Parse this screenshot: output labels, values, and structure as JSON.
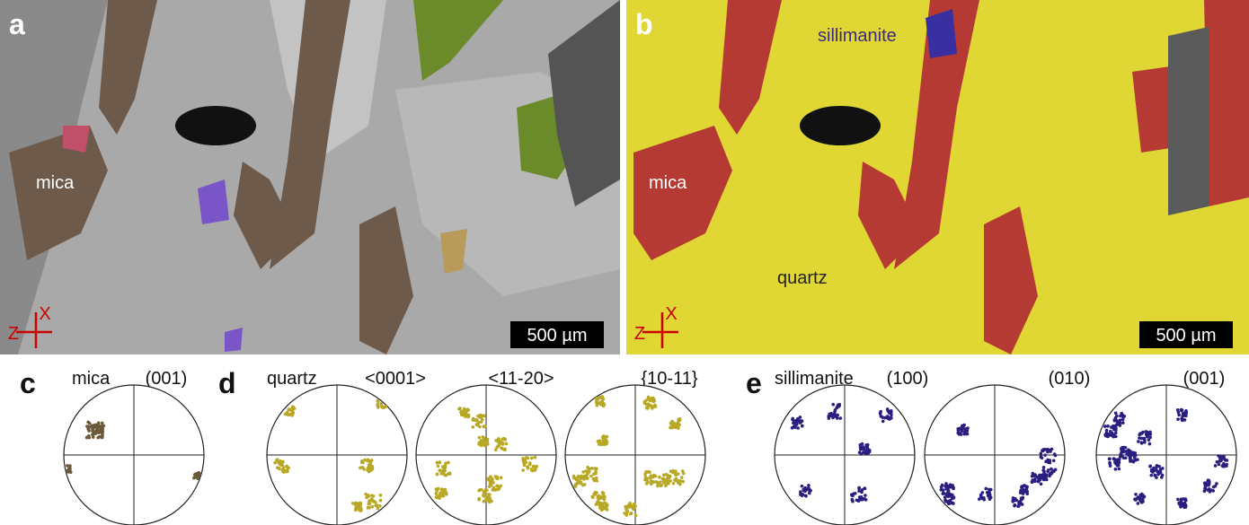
{
  "panels": [
    {
      "label": "a",
      "annotations": [
        "mica"
      ],
      "scale_bar": "500 µm",
      "axes": [
        "X",
        "Z"
      ]
    },
    {
      "label": "b",
      "annotations": [
        "sillimanite",
        "mica",
        "quartz"
      ],
      "scale_bar": "500 µm",
      "axes": [
        "X",
        "Z"
      ]
    },
    {
      "label": "c",
      "mineral": "mica",
      "projections": [
        "(001)"
      ]
    },
    {
      "label": "d",
      "mineral": "quartz",
      "projections": [
        "<0001>",
        "<11-20>",
        "{10-11}"
      ]
    },
    {
      "label": "e",
      "mineral": "sillimanite",
      "projections": [
        "(100)",
        "(010)",
        "(001)"
      ]
    }
  ]
}
